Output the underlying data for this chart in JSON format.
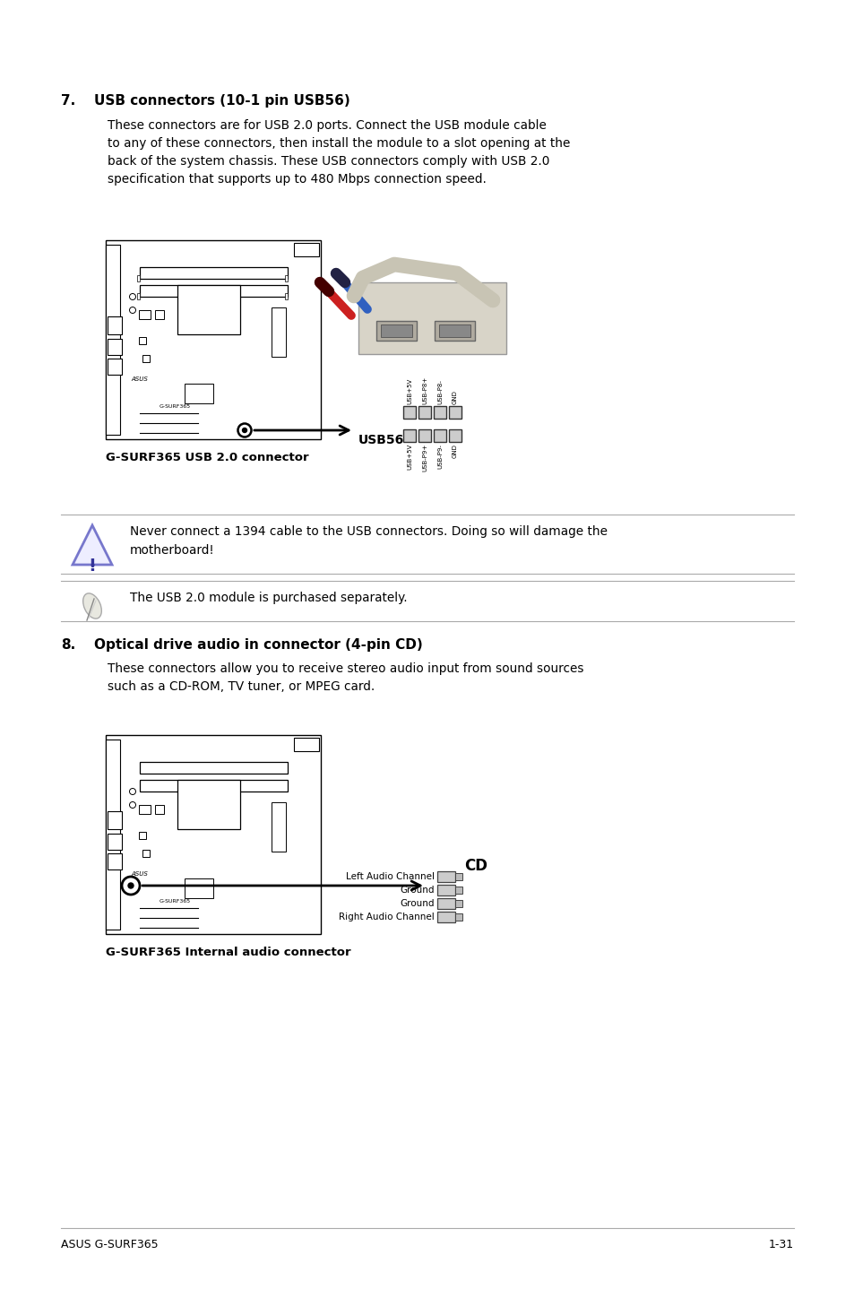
{
  "bg_color": "#ffffff",
  "section7_num": "7.",
  "section7_title": "USB connectors (10-1 pin USB56)",
  "section7_body": "These connectors are for USB 2.0 ports. Connect the USB module cable\nto any of these connectors, then install the module to a slot opening at the\nback of the system chassis. These USB connectors comply with USB 2.0\nspecification that supports up to 480 Mbps connection speed.",
  "usb_label": "USB56",
  "usb_connector_caption": "G-SURF365 USB 2.0 connector",
  "usb_pin_labels_top": [
    "USB+5V",
    "USB-P8+",
    "USB-P8-",
    "GND"
  ],
  "usb_pin_labels_bot": [
    "USB+5V",
    "USB-P9+",
    "USB-P9-",
    "GND"
  ],
  "warning_text": "Never connect a 1394 cable to the USB connectors. Doing so will damage the\nmotherboard!",
  "note_text": "The USB 2.0 module is purchased separately.",
  "section8_num": "8.",
  "section8_title": "Optical drive audio in connector (4-pin CD)",
  "section8_body": "These connectors allow you to receive stereo audio input from sound sources\nsuch as a CD-ROM, TV tuner, or MPEG card.",
  "cd_label": "CD",
  "cd_pin_labels": [
    "Left Audio Channel",
    "Ground",
    "Ground",
    "Right Audio Channel"
  ],
  "cd_connector_caption": "G-SURF365 Internal audio connector",
  "footer_left": "ASUS G-SURF365",
  "footer_right": "1-31"
}
